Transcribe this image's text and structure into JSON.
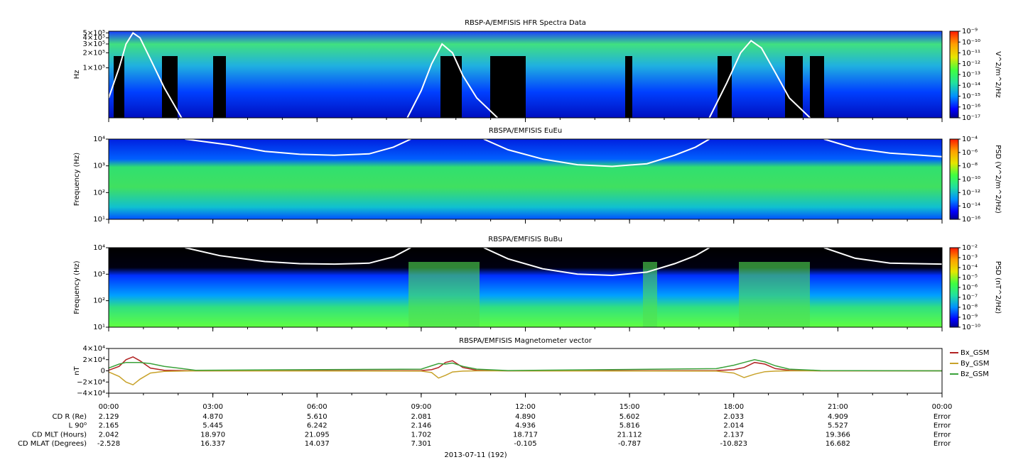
{
  "chart_data": [
    {
      "type": "spectrogram",
      "title": "RBSP-A/EMFISIS  HFR Spectra Data",
      "ylabel": "Hz",
      "ylog": true,
      "ylim": [
        10000,
        540000
      ],
      "yticks": [
        {
          "value": 500000,
          "label": "5×10⁵"
        },
        {
          "value": 400000,
          "label": "4×10⁵"
        },
        {
          "value": 300000,
          "label": "3×10⁵"
        },
        {
          "value": 200000,
          "label": "2×10⁵"
        },
        {
          "value": 100000,
          "label": "1×10⁵"
        }
      ],
      "clim": [
        1e-17,
        1e-09
      ],
      "clabel": "V^2/m^2/Hz",
      "cticks": [
        {
          "value": 1e-09,
          "label": "10⁻⁹"
        },
        {
          "value": 1e-10,
          "label": "10⁻¹⁰"
        },
        {
          "value": 1e-11,
          "label": "10⁻¹¹"
        },
        {
          "value": 1e-12,
          "label": "10⁻¹²"
        },
        {
          "value": 1e-13,
          "label": "10⁻¹³"
        },
        {
          "value": 1e-14,
          "label": "10⁻¹⁴"
        },
        {
          "value": 1e-15,
          "label": "10⁻¹⁵"
        },
        {
          "value": 1e-16,
          "label": "10⁻¹⁶"
        },
        {
          "value": 1e-17,
          "label": "10⁻¹⁷"
        }
      ],
      "line": {
        "color": "#ffffff",
        "x": [
          0,
          0.3,
          0.5,
          0.7,
          0.9,
          1.2,
          1.6,
          2.1,
          5,
          8.6,
          9.0,
          9.3,
          9.6,
          9.9,
          10.2,
          10.6,
          11.2,
          14,
          17.3,
          17.8,
          18.2,
          18.5,
          18.8,
          19.2,
          19.6,
          20.2
        ],
        "y": [
          25000,
          100000,
          300000,
          500000,
          400000,
          150000,
          40000,
          10000,
          null,
          10000,
          35000,
          120000,
          300000,
          200000,
          70000,
          25000,
          10000,
          null,
          10000,
          50000,
          200000,
          350000,
          250000,
          80000,
          25000,
          10000
        ]
      }
    },
    {
      "type": "spectrogram",
      "title": "RBSPA/EMFISIS  EuEu",
      "ylabel": "Frequency (Hz)",
      "ylog": true,
      "ylim": [
        10,
        10000
      ],
      "yticks": [
        {
          "value": 10,
          "label": "10¹"
        },
        {
          "value": 100,
          "label": "10²"
        },
        {
          "value": 1000,
          "label": "10³"
        },
        {
          "value": 10000,
          "label": "10⁴"
        }
      ],
      "clim": [
        1e-16,
        0.0001
      ],
      "clabel": "PSD (V^2/m^2/Hz)",
      "cticks": [
        {
          "value": 0.0001,
          "label": "10⁻⁴"
        },
        {
          "value": 1e-06,
          "label": "10⁻⁶"
        },
        {
          "value": 1e-08,
          "label": "10⁻⁸"
        },
        {
          "value": 1e-10,
          "label": "10⁻¹⁰"
        },
        {
          "value": 1e-12,
          "label": "10⁻¹²"
        },
        {
          "value": 1e-14,
          "label": "10⁻¹⁴"
        },
        {
          "value": 1e-16,
          "label": "10⁻¹⁶"
        }
      ],
      "line": {
        "color": "#ffffff",
        "x": [
          2.2,
          3.5,
          4.5,
          5.5,
          6.5,
          7.5,
          8.2,
          8.7,
          10,
          10.8,
          11.5,
          12.5,
          13.5,
          14.5,
          15.5,
          16.3,
          16.9,
          17.3,
          19,
          20.6,
          21.5,
          22.5,
          24
        ],
        "y": [
          10000,
          6000,
          3500,
          2700,
          2500,
          2800,
          5000,
          10000,
          null,
          10000,
          4000,
          1800,
          1100,
          950,
          1200,
          2500,
          5000,
          10000,
          null,
          10000,
          4500,
          3000,
          2200
        ]
      }
    },
    {
      "type": "spectrogram",
      "title": "RBSPA/EMFISIS  BuBu",
      "ylabel": "Frequency (Hz)",
      "ylog": true,
      "ylim": [
        10,
        10000
      ],
      "yticks": [
        {
          "value": 10,
          "label": "10¹"
        },
        {
          "value": 100,
          "label": "10²"
        },
        {
          "value": 1000,
          "label": "10³"
        },
        {
          "value": 10000,
          "label": "10⁴"
        }
      ],
      "clim": [
        1e-10,
        0.01
      ],
      "clabel": "PSD (nT^2/Hz)",
      "cticks": [
        {
          "value": 0.01,
          "label": "10⁻²"
        },
        {
          "value": 0.001,
          "label": "10⁻³"
        },
        {
          "value": 0.0001,
          "label": "10⁻⁴"
        },
        {
          "value": 1e-05,
          "label": "10⁻⁵"
        },
        {
          "value": 1e-06,
          "label": "10⁻⁶"
        },
        {
          "value": 1e-07,
          "label": "10⁻⁷"
        },
        {
          "value": 1e-08,
          "label": "10⁻⁸"
        },
        {
          "value": 1e-09,
          "label": "10⁻⁹"
        },
        {
          "value": 1e-10,
          "label": "10⁻¹⁰"
        }
      ],
      "line": {
        "color": "#ffffff",
        "x": [
          2.2,
          3.2,
          4.5,
          5.5,
          6.5,
          7.5,
          8.2,
          8.7,
          10,
          10.8,
          11.5,
          12.5,
          13.5,
          14.5,
          15.5,
          16.3,
          16.9,
          17.3,
          19,
          20.6,
          21.5,
          22.5,
          24
        ],
        "y": [
          10000,
          5000,
          3000,
          2500,
          2400,
          2600,
          4500,
          10000,
          null,
          10000,
          3800,
          1600,
          1000,
          900,
          1200,
          2500,
          5000,
          10000,
          null,
          10000,
          4000,
          2600,
          2400
        ]
      }
    },
    {
      "type": "line",
      "title": "RBSPA/EMFISIS  Magnetometer vector",
      "ylabel": "nT",
      "xlabel": "2013-07-11 (192)",
      "xlim": [
        0,
        24
      ],
      "xticks": [
        {
          "value": 0,
          "label": "00:00"
        },
        {
          "value": 3,
          "label": "03:00"
        },
        {
          "value": 6,
          "label": "06:00"
        },
        {
          "value": 9,
          "label": "09:00"
        },
        {
          "value": 12,
          "label": "12:00"
        },
        {
          "value": 15,
          "label": "15:00"
        },
        {
          "value": 18,
          "label": "18:00"
        },
        {
          "value": 21,
          "label": "21:00"
        },
        {
          "value": 24,
          "label": "00:00"
        }
      ],
      "ylim": [
        -40000,
        40000
      ],
      "yticks": [
        {
          "value": 40000,
          "label": "4×10⁴"
        },
        {
          "value": 20000,
          "label": "2×10⁴"
        },
        0,
        {
          "value": -20000,
          "label": "−2×10⁴"
        },
        {
          "value": -40000,
          "label": "−4×10⁴"
        }
      ],
      "x": [
        0,
        0.3,
        0.5,
        0.7,
        0.9,
        1.2,
        1.6,
        2.5,
        9,
        9.3,
        9.5,
        9.7,
        9.9,
        10.2,
        10.6,
        11.5,
        17.5,
        18,
        18.3,
        18.6,
        18.9,
        19.2,
        19.6,
        20.5,
        24
      ],
      "series": [
        {
          "name": "Bx_GSM",
          "color": "#b22222",
          "values": [
            1000,
            8000,
            20000,
            25000,
            18000,
            5000,
            1000,
            0,
            500,
            2000,
            6000,
            15000,
            18000,
            6000,
            1000,
            0,
            500,
            2000,
            6000,
            15000,
            12000,
            4000,
            1000,
            0,
            0
          ]
        },
        {
          "name": "By_GSM",
          "color": "#c8a22a",
          "values": [
            -2000,
            -10000,
            -20000,
            -25000,
            -15000,
            -4000,
            -1000,
            0,
            -500,
            -3000,
            -13000,
            -8000,
            -2000,
            -500,
            0,
            0,
            -500,
            -4000,
            -12000,
            -6000,
            -1500,
            -500,
            0,
            0,
            0
          ]
        },
        {
          "name": "Bz_GSM",
          "color": "#3aa23a",
          "values": [
            5000,
            12000,
            15000,
            15000,
            15000,
            13000,
            8000,
            1000,
            3000,
            9000,
            13000,
            12000,
            14000,
            8000,
            3000,
            500,
            4000,
            10000,
            15000,
            20000,
            16000,
            9000,
            3000,
            500,
            0
          ]
        }
      ]
    }
  ],
  "ephemeris": {
    "rows": [
      {
        "label": "CD R (Re)",
        "values": [
          "2.129",
          "4.870",
          "5.610",
          "2.081",
          "4.890",
          "5.602",
          "2.033",
          "4.909",
          "Error"
        ]
      },
      {
        "label": "L 90⁰",
        "values": [
          "2.165",
          "5.445",
          "6.242",
          "2.146",
          "4.936",
          "5.816",
          "2.014",
          "5.527",
          "Error"
        ]
      },
      {
        "label": "CD MLT (Hours)",
        "values": [
          "2.042",
          "18.970",
          "21.095",
          "1.702",
          "18.717",
          "21.112",
          "2.137",
          "19.366",
          "Error"
        ]
      },
      {
        "label": "CD MLAT (Degrees)",
        "values": [
          "-2.528",
          "16.337",
          "14.037",
          "7.301",
          "-0.105",
          "-0.787",
          "-10.823",
          "16.682",
          "Error"
        ]
      }
    ]
  }
}
